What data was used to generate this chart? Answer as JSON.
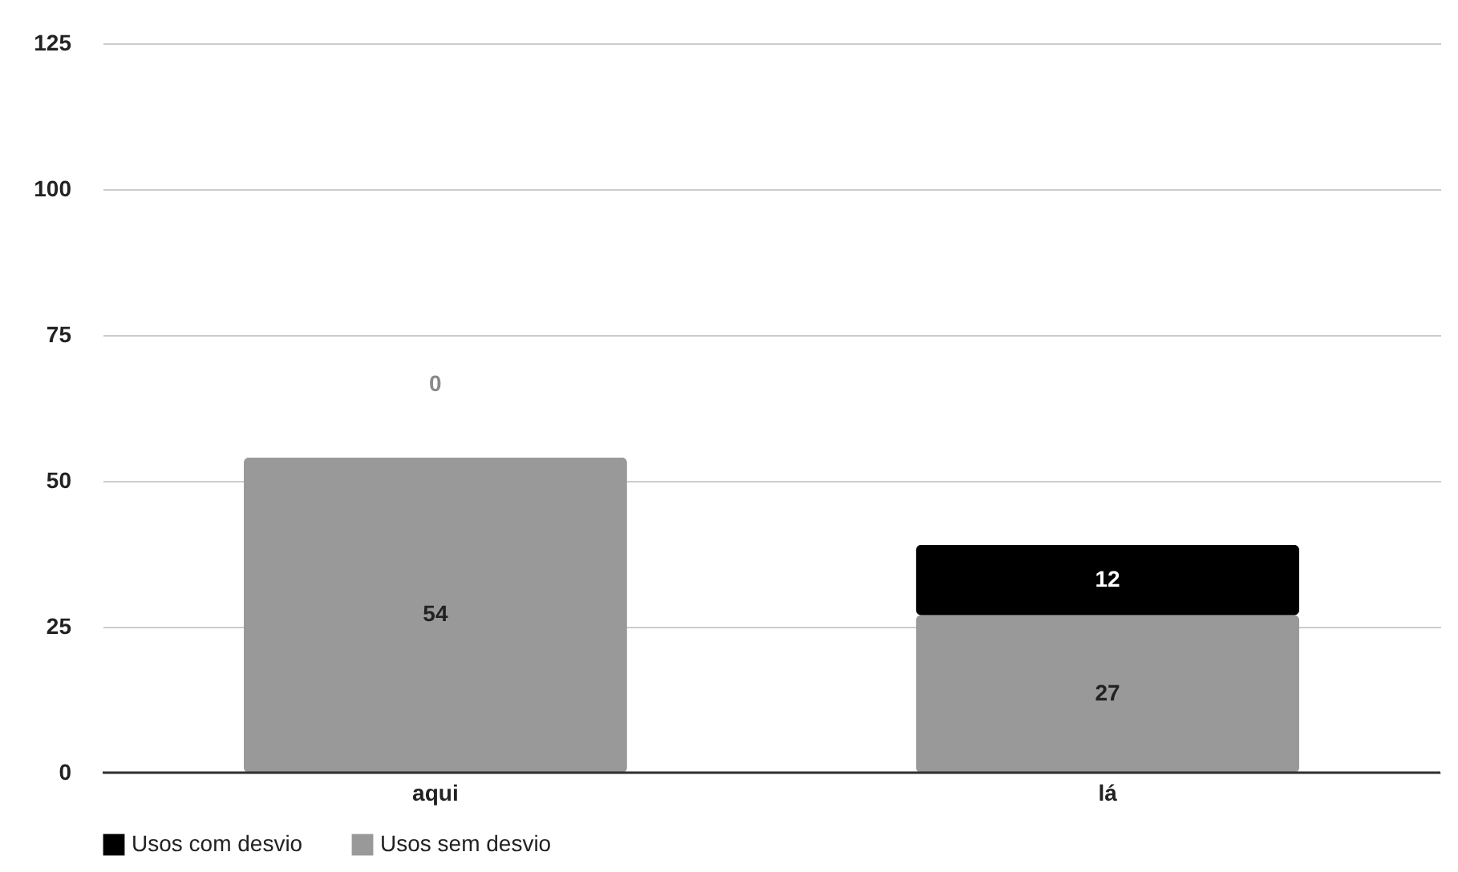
{
  "chart_data": {
    "type": "bar",
    "stacked": true,
    "categories": [
      "aqui",
      "lá"
    ],
    "series": [
      {
        "name": "Usos sem desvio",
        "color": "#999999",
        "values": [
          54,
          27
        ]
      },
      {
        "name": "Usos com desvio",
        "color": "#000000",
        "values": [
          0,
          12
        ]
      }
    ],
    "ylim": [
      0,
      125
    ],
    "yticks": [
      0,
      25,
      50,
      75,
      100,
      125
    ],
    "grid": "y",
    "legend": "bottom",
    "data_labels": true
  }
}
